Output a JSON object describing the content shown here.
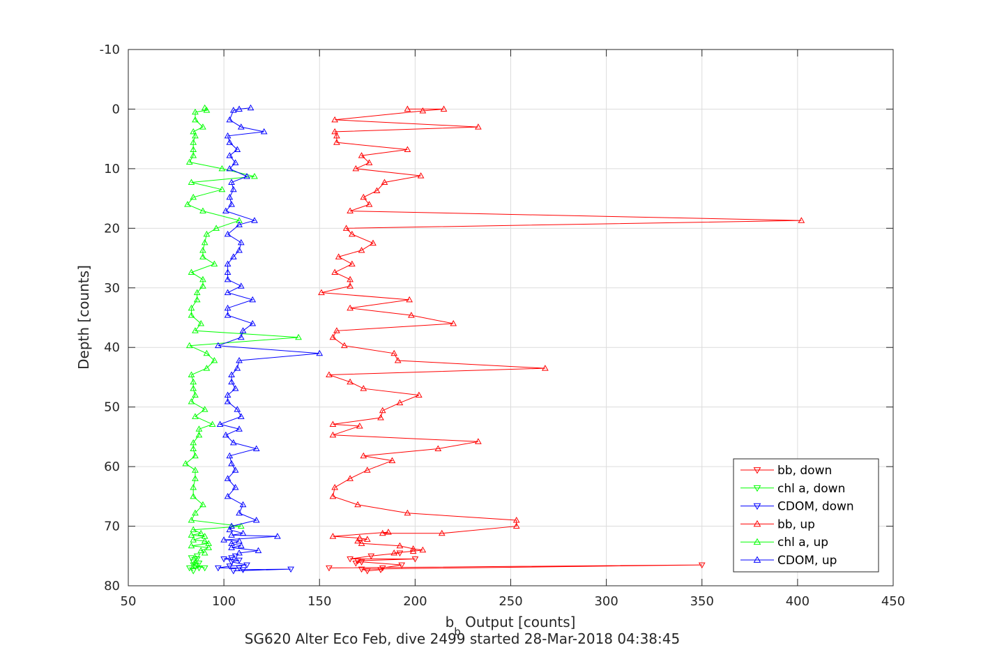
{
  "chart_data": {
    "type": "line",
    "xlabel_main": "b",
    "xlabel_sub": "b",
    "xlabel_rest": " Output [counts]",
    "ylabel": "Depth [counts]",
    "title_bottom": "SG620 Alter Eco Feb, dive 2499 started 28-Mar-2018 04:38:45",
    "xlim": [
      50,
      450
    ],
    "ylim": [
      -10,
      80
    ],
    "y_reversed": true,
    "grid": true,
    "xticks": [
      "50",
      "100",
      "150",
      "200",
      "250",
      "300",
      "350",
      "400",
      "450"
    ],
    "yticks": [
      "-10",
      "0",
      "10",
      "20",
      "30",
      "40",
      "50",
      "60",
      "70",
      "80"
    ],
    "legend_position": "bottom-right",
    "series": [
      {
        "name": "bb, down",
        "color": "#ff0000",
        "marker": "triangle-down",
        "points": [
          [
            155,
            77
          ],
          [
            350,
            76.5
          ],
          [
            172,
            77.2
          ],
          [
            175,
            77.5
          ],
          [
            182,
            77.3
          ],
          [
            183,
            77
          ],
          [
            193,
            76.5
          ],
          [
            172,
            76
          ],
          [
            169,
            76.2
          ],
          [
            170,
            75.8
          ],
          [
            200,
            75.5
          ],
          [
            166,
            75.5
          ],
          [
            177,
            75
          ],
          [
            192,
            74.5
          ]
        ]
      },
      {
        "name": "chl a, down",
        "color": "#00ff00",
        "marker": "triangle-down",
        "points": [
          [
            84,
            77.5
          ],
          [
            82,
            77
          ],
          [
            87,
            77
          ],
          [
            85,
            76.7
          ],
          [
            90,
            77
          ],
          [
            84,
            76.5
          ],
          [
            87,
            76.2
          ],
          [
            84,
            76
          ],
          [
            86,
            75.5
          ],
          [
            83,
            75.3
          ],
          [
            86,
            75
          ]
        ]
      },
      {
        "name": "CDOM, down",
        "color": "#0000ff",
        "marker": "triangle-down",
        "points": [
          [
            105,
            77.5
          ],
          [
            135,
            77.2
          ],
          [
            110,
            77.3
          ],
          [
            108,
            77
          ],
          [
            97,
            77
          ],
          [
            103,
            76.7
          ],
          [
            112,
            76.5
          ],
          [
            104,
            76
          ],
          [
            108,
            75.7
          ],
          [
            100,
            75.5
          ],
          [
            104,
            75.3
          ],
          [
            106,
            75
          ]
        ]
      },
      {
        "name": "bb, up",
        "color": "#ff0000",
        "marker": "triangle-up",
        "points": [
          [
            196,
            0
          ],
          [
            215,
            0
          ],
          [
            204,
            0.3
          ],
          [
            158,
            1.8
          ],
          [
            233,
            3
          ],
          [
            158,
            3.8
          ],
          [
            159,
            4.5
          ],
          [
            159,
            5.6
          ],
          [
            196,
            6.8
          ],
          [
            172,
            7.8
          ],
          [
            176,
            9
          ],
          [
            169,
            10
          ],
          [
            203,
            11.2
          ],
          [
            184,
            12.3
          ],
          [
            180,
            13.7
          ],
          [
            173,
            14.8
          ],
          [
            176,
            16
          ],
          [
            166,
            17.1
          ],
          [
            402,
            18.7
          ],
          [
            164,
            20
          ],
          [
            167,
            21
          ],
          [
            178,
            22.5
          ],
          [
            172,
            23.7
          ],
          [
            160,
            24.8
          ],
          [
            167,
            26
          ],
          [
            158,
            27.4
          ],
          [
            166,
            28.6
          ],
          [
            166,
            29.7
          ],
          [
            151,
            30.8
          ],
          [
            197,
            32
          ],
          [
            166,
            33.4
          ],
          [
            198,
            34.6
          ],
          [
            220,
            36
          ],
          [
            159,
            37.2
          ],
          [
            157,
            38.3
          ],
          [
            163,
            39.7
          ],
          [
            189,
            41
          ],
          [
            191,
            42.2
          ],
          [
            268,
            43.5
          ],
          [
            155,
            44.6
          ],
          [
            166,
            45.8
          ],
          [
            173,
            46.9
          ],
          [
            202,
            48
          ],
          [
            192,
            49.3
          ],
          [
            183,
            50.6
          ],
          [
            182,
            51.8
          ],
          [
            157,
            52.9
          ],
          [
            171,
            53.2
          ],
          [
            157,
            54.7
          ],
          [
            233,
            55.8
          ],
          [
            212,
            57
          ],
          [
            173,
            58.2
          ],
          [
            188,
            59
          ],
          [
            175,
            60.6
          ],
          [
            166,
            62
          ],
          [
            158,
            63.5
          ],
          [
            157,
            65
          ],
          [
            170,
            66.4
          ],
          [
            196,
            67.8
          ],
          [
            253,
            69
          ],
          [
            253,
            70
          ],
          [
            214,
            71.2
          ],
          [
            183,
            71.2
          ],
          [
            186,
            71
          ],
          [
            157,
            71.7
          ],
          [
            171,
            72
          ],
          [
            175,
            72.2
          ],
          [
            170,
            72.5
          ],
          [
            172,
            72.9
          ],
          [
            192,
            73.3
          ],
          [
            199,
            73.8
          ],
          [
            204,
            74
          ],
          [
            199,
            74.2
          ],
          [
            189,
            74.5
          ]
        ]
      },
      {
        "name": "chl a, up",
        "color": "#00ff00",
        "marker": "triangle-up",
        "points": [
          [
            90,
            -0.2
          ],
          [
            91,
            0.2
          ],
          [
            85,
            0.5
          ],
          [
            85,
            1.8
          ],
          [
            89,
            3
          ],
          [
            84,
            3.8
          ],
          [
            85,
            4.5
          ],
          [
            84,
            5.6
          ],
          [
            84,
            6.8
          ],
          [
            84,
            7.8
          ],
          [
            82,
            8.9
          ],
          [
            99,
            10
          ],
          [
            116,
            11.3
          ],
          [
            83,
            12.3
          ],
          [
            99,
            13.5
          ],
          [
            84,
            14.8
          ],
          [
            81,
            16
          ],
          [
            89,
            17.1
          ],
          [
            108,
            18.7
          ],
          [
            96,
            20
          ],
          [
            91,
            21
          ],
          [
            90,
            22.4
          ],
          [
            89,
            23.7
          ],
          [
            89,
            24.8
          ],
          [
            95,
            26
          ],
          [
            83,
            27.4
          ],
          [
            89,
            28.6
          ],
          [
            89,
            29.7
          ],
          [
            86,
            30.8
          ],
          [
            86,
            32
          ],
          [
            83,
            33.4
          ],
          [
            83,
            34.6
          ],
          [
            88,
            36
          ],
          [
            85,
            37.2
          ],
          [
            139,
            38.3
          ],
          [
            82,
            39.7
          ],
          [
            91,
            41
          ],
          [
            95,
            42.2
          ],
          [
            91,
            43.5
          ],
          [
            83,
            44.6
          ],
          [
            84,
            45.8
          ],
          [
            84,
            46.9
          ],
          [
            85,
            48
          ],
          [
            83,
            49.1
          ],
          [
            90,
            50.4
          ],
          [
            85,
            51.6
          ],
          [
            94,
            52.9
          ],
          [
            87,
            53.7
          ],
          [
            87,
            54.7
          ],
          [
            84,
            56
          ],
          [
            84,
            57
          ],
          [
            85,
            58.2
          ],
          [
            80,
            59.5
          ],
          [
            85,
            60.6
          ],
          [
            85,
            62
          ],
          [
            84,
            63.5
          ],
          [
            84,
            65
          ],
          [
            89,
            66.4
          ],
          [
            85,
            67.8
          ],
          [
            83,
            69
          ],
          [
            109,
            70
          ],
          [
            84,
            70.6
          ],
          [
            88,
            71.2
          ],
          [
            83,
            71.5
          ],
          [
            90,
            71.7
          ],
          [
            84,
            72.3
          ],
          [
            90,
            72.5
          ],
          [
            92,
            72.9
          ],
          [
            83,
            73.3
          ],
          [
            92,
            73.6
          ],
          [
            88,
            74.1
          ],
          [
            90,
            74.5
          ]
        ]
      },
      {
        "name": "CDOM, up",
        "color": "#0000ff",
        "marker": "triangle-up",
        "points": [
          [
            114,
            -0.2
          ],
          [
            108,
            0
          ],
          [
            105,
            0.2
          ],
          [
            103,
            1.8
          ],
          [
            109,
            3
          ],
          [
            121,
            3.8
          ],
          [
            102,
            4.5
          ],
          [
            103,
            5.6
          ],
          [
            107,
            6.8
          ],
          [
            103,
            7.8
          ],
          [
            106,
            9
          ],
          [
            103,
            10
          ],
          [
            112,
            11.3
          ],
          [
            104,
            12.3
          ],
          [
            105,
            13.5
          ],
          [
            103,
            14.8
          ],
          [
            104,
            16
          ],
          [
            101,
            17.1
          ],
          [
            116,
            18.7
          ],
          [
            108,
            19.4
          ],
          [
            102,
            21
          ],
          [
            109,
            22.4
          ],
          [
            108,
            23.7
          ],
          [
            105,
            24.8
          ],
          [
            102,
            26
          ],
          [
            102,
            27.4
          ],
          [
            102,
            28.6
          ],
          [
            109,
            29.7
          ],
          [
            102,
            30.8
          ],
          [
            115,
            32
          ],
          [
            102,
            33.4
          ],
          [
            102,
            34.6
          ],
          [
            115,
            36
          ],
          [
            110,
            37.2
          ],
          [
            109,
            38.3
          ],
          [
            97,
            39.7
          ],
          [
            150,
            41
          ],
          [
            108,
            42.2
          ],
          [
            107,
            43.5
          ],
          [
            104,
            44.6
          ],
          [
            104,
            45.8
          ],
          [
            106,
            46.9
          ],
          [
            102,
            48
          ],
          [
            102,
            49.1
          ],
          [
            107,
            50.4
          ],
          [
            109,
            51.6
          ],
          [
            98,
            52.9
          ],
          [
            108,
            53.7
          ],
          [
            101,
            54.7
          ],
          [
            105,
            56
          ],
          [
            117,
            57
          ],
          [
            103,
            58.2
          ],
          [
            104,
            59.5
          ],
          [
            106,
            60.6
          ],
          [
            102,
            62
          ],
          [
            106,
            63.5
          ],
          [
            102,
            65
          ],
          [
            110,
            66.4
          ],
          [
            108,
            67.8
          ],
          [
            117,
            69
          ],
          [
            104,
            70
          ],
          [
            103,
            70.6
          ],
          [
            110,
            71.2
          ],
          [
            104,
            71.5
          ],
          [
            128,
            71.7
          ],
          [
            100,
            72.3
          ],
          [
            108,
            72.5
          ],
          [
            104,
            72.9
          ],
          [
            109,
            73.3
          ],
          [
            104,
            73.6
          ],
          [
            118,
            74.1
          ],
          [
            108,
            74.5
          ]
        ]
      }
    ]
  }
}
